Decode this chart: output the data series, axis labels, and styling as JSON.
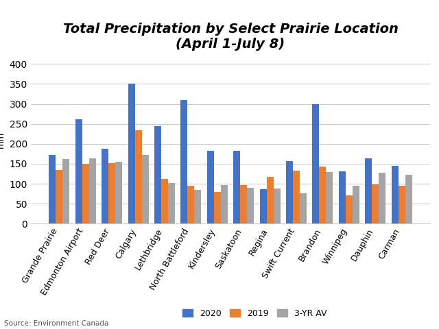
{
  "title": "Total Precipitation by Select Prairie Location\n(April 1-July 8)",
  "ylabel": "mm",
  "source": "Source: Environment Canada",
  "categories": [
    "Grande Prairie",
    "Edmonton Airport",
    "Red Deer",
    "Calgary",
    "Lethbridge",
    "North Battleford",
    "Kindersley",
    "Saskatoon",
    "Regina",
    "Swift Current",
    "Brandon",
    "Winnipeg",
    "Dauphin",
    "Carman"
  ],
  "values_2020": [
    172,
    262,
    187,
    350,
    245,
    310,
    182,
    182,
    87,
    157,
    300,
    131,
    163,
    145
  ],
  "values_2019": [
    135,
    150,
    151,
    234,
    112,
    95,
    79,
    97,
    118,
    133,
    143,
    71,
    98,
    95
  ],
  "values_3yr": [
    162,
    163,
    155,
    173,
    102,
    84,
    96,
    90,
    88,
    77,
    130,
    95,
    127,
    123
  ],
  "color_2020": "#4472C4",
  "color_2019": "#ED7D31",
  "color_3yr": "#A5A5A5",
  "ylim": [
    0,
    420
  ],
  "yticks": [
    0,
    50,
    100,
    150,
    200,
    250,
    300,
    350,
    400
  ],
  "legend_labels": [
    "2020",
    "2019",
    "3-YR AV"
  ],
  "background_color": "#FFFFFF",
  "grid_color": "#CCCCCC",
  "title_fontsize": 14,
  "axis_fontsize": 9,
  "source_fontsize": 7.5,
  "bar_width": 0.26
}
